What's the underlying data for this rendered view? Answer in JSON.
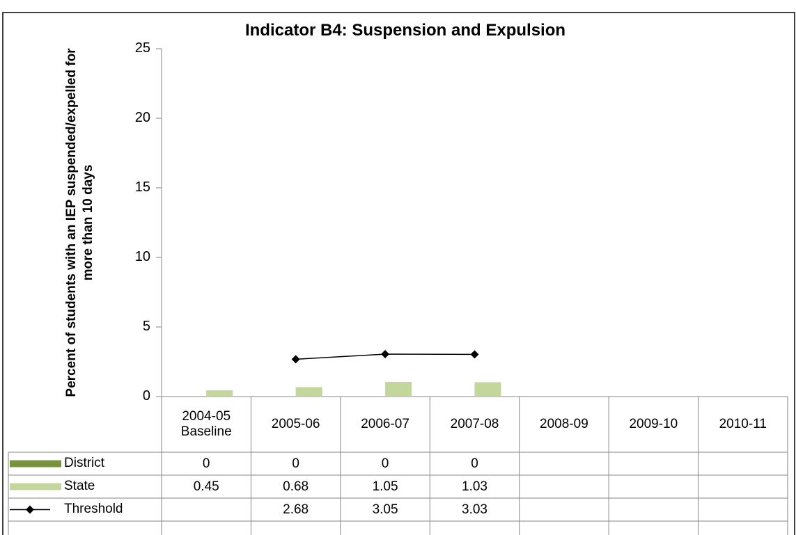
{
  "chart_data": {
    "type": "bar",
    "title": "Indicator B4: Suspension and Expulsion",
    "y_label": "Percent of students with an IEP suspended/expelled for more than 10 days",
    "categories": [
      "2004-05 Baseline",
      "2005-06",
      "2006-07",
      "2007-08",
      "2008-09",
      "2009-10",
      "2010-11"
    ],
    "series": [
      {
        "name": "District",
        "type": "bar",
        "color": "#77933c",
        "values": [
          0,
          0,
          0,
          0,
          null,
          null,
          null
        ]
      },
      {
        "name": "State",
        "type": "bar",
        "color": "#c3d69b",
        "values": [
          0.45,
          0.68,
          1.05,
          1.03,
          null,
          null,
          null
        ]
      },
      {
        "name": "Threshold",
        "type": "line",
        "color": "#000000",
        "values": [
          null,
          2.68,
          3.05,
          3.03,
          null,
          null,
          null
        ]
      }
    ],
    "ylim": [
      0,
      25
    ],
    "yticks": [
      0,
      5,
      10,
      15,
      20,
      25
    ]
  }
}
